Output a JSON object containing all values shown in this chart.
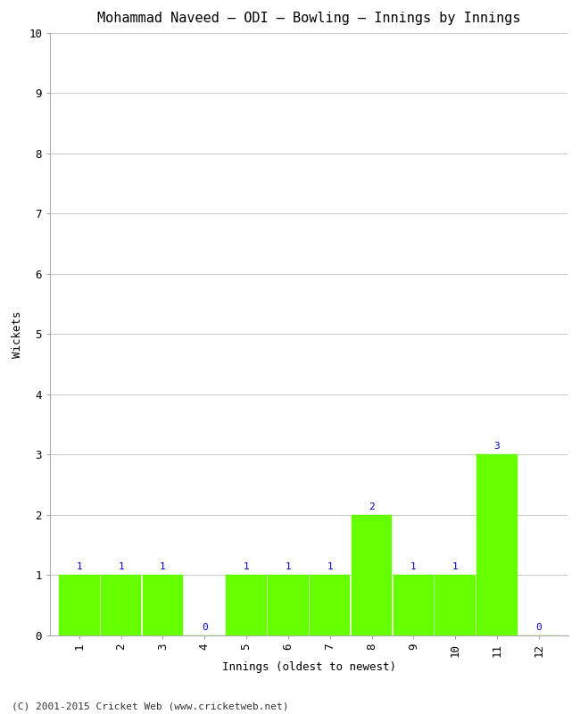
{
  "title": "Mohammad Naveed – ODI – Bowling – Innings by Innings",
  "xlabel": "Innings (oldest to newest)",
  "ylabel": "Wickets",
  "categories": [
    1,
    2,
    3,
    4,
    5,
    6,
    7,
    8,
    9,
    10,
    11,
    12
  ],
  "values": [
    1,
    1,
    1,
    0,
    1,
    1,
    1,
    2,
    1,
    1,
    3,
    0
  ],
  "bar_color": "#66ff00",
  "bar_edge_color": "#66ff00",
  "label_color": "#0000cc",
  "ylim": [
    0,
    10
  ],
  "yticks": [
    0,
    1,
    2,
    3,
    4,
    5,
    6,
    7,
    8,
    9,
    10
  ],
  "background_color": "#ffffff",
  "grid_color": "#cccccc",
  "title_fontsize": 11,
  "axis_label_fontsize": 9,
  "tick_fontsize": 9,
  "bar_label_fontsize": 8,
  "footer": "(C) 2001-2015 Cricket Web (www.cricketweb.net)",
  "footer_fontsize": 8
}
